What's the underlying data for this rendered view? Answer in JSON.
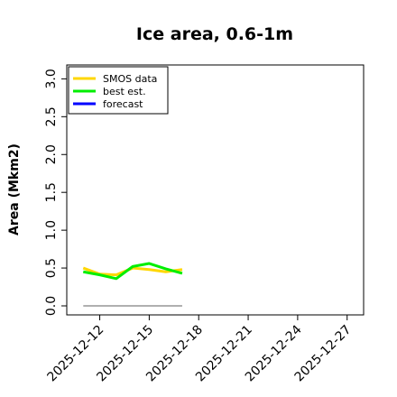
{
  "chart_data": {
    "type": "line",
    "title": "Ice area, 0.6-1m",
    "ylabel": "Area (Mkm2)",
    "ylim": [
      0,
      3.1
    ],
    "y_ticks": [
      "0.0",
      "0.5",
      "1.0",
      "1.5",
      "2.0",
      "2.5",
      "3.0"
    ],
    "y_tick_values": [
      0,
      0.5,
      1.0,
      1.5,
      2.0,
      2.5,
      3.0
    ],
    "xlim": [
      "2025-12-10",
      "2025-12-28"
    ],
    "x_ticks": [
      "2025-12-12",
      "2025-12-15",
      "2025-12-18",
      "2025-12-21",
      "2025-12-24",
      "2025-12-27"
    ],
    "x_tick_colors": [
      "#000000",
      "#000000",
      "#008000",
      "#000000",
      "#000000",
      "#000000"
    ],
    "grid": false,
    "legend_position": "top-left",
    "series": [
      {
        "name": "SMOS data",
        "color": "#ffd700",
        "x": [
          "2025-12-11",
          "2025-12-12",
          "2025-12-13",
          "2025-12-14",
          "2025-12-15",
          "2025-12-16",
          "2025-12-17"
        ],
        "y": [
          0.5,
          0.42,
          0.41,
          0.5,
          0.48,
          0.45,
          0.48
        ]
      },
      {
        "name": "best est.",
        "color": "#00ee00",
        "x": [
          "2025-12-11",
          "2025-12-12",
          "2025-12-13",
          "2025-12-14",
          "2025-12-15",
          "2025-12-16",
          "2025-12-17"
        ],
        "y": [
          0.45,
          0.41,
          0.36,
          0.52,
          0.56,
          0.49,
          0.43
        ]
      },
      {
        "name": "forecast",
        "color": "#0000ff",
        "x": [],
        "y": []
      }
    ],
    "reference_line": {
      "color": "#808080",
      "x": [
        "2025-12-11",
        "2025-12-17"
      ],
      "y": [
        0,
        0
      ]
    }
  }
}
